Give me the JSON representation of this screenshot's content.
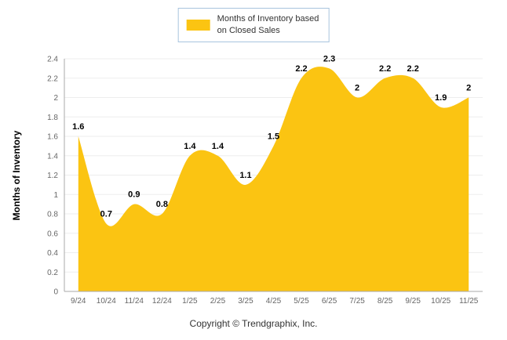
{
  "legend": {
    "line1": "Months of Inventory based",
    "line2": "on Closed Sales"
  },
  "footer": {
    "copyright": "Copyright © Trendgraphix, Inc."
  },
  "chart_data": {
    "type": "area",
    "title": "",
    "categories": [
      "9/24",
      "10/24",
      "11/24",
      "12/24",
      "1/25",
      "2/25",
      "3/25",
      "4/25",
      "5/25",
      "6/25",
      "7/25",
      "8/25",
      "9/25",
      "10/25",
      "11/25"
    ],
    "series": [
      {
        "name": "Months of Inventory based on Closed Sales",
        "values": [
          1.6,
          0.7,
          0.9,
          0.8,
          1.4,
          1.4,
          1.1,
          1.5,
          2.2,
          2.3,
          2,
          2.2,
          2.2,
          1.9,
          2
        ]
      }
    ],
    "xlabel": "",
    "ylabel": "Months of Inventory",
    "ylim": [
      0,
      2.4
    ],
    "ytick_step": 0.2,
    "grid": true,
    "data_labels": true,
    "legend_position": "top",
    "colors": {
      "area": "#fbc412",
      "data_label": "#000000",
      "axis_line": "#aaaaaa",
      "grid_line": "#ededed",
      "tick_text": "#666666",
      "legend_border": "#a8c4de"
    }
  }
}
